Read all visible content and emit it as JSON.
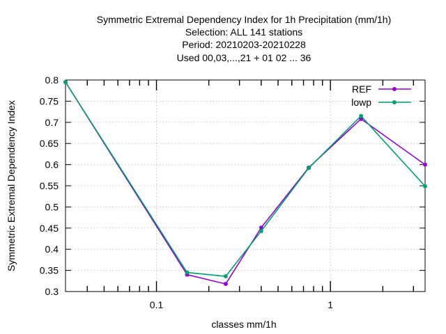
{
  "chart_data": {
    "type": "line",
    "title_lines": [
      "Symmetric Extremal Dependency Index  for 1h Precipitation (mm/1h)",
      "Selection: ALL     141 stations",
      "Period: 20210203-20210228",
      "Used  00,03,...,21  + 01 02 ... 36"
    ],
    "xlabel": "classes mm/1h",
    "ylabel": "Symmetric Extremal Dependency Index",
    "x_scale": "log",
    "xlim": [
      0.03,
      3.5
    ],
    "ylim": [
      0.3,
      0.8
    ],
    "x_major_ticks": [
      {
        "value": 0.1,
        "label": "0.1"
      },
      {
        "value": 1,
        "label": "1"
      }
    ],
    "y_ticks": [
      {
        "value": 0.3,
        "label": "0.3"
      },
      {
        "value": 0.35,
        "label": "0.35"
      },
      {
        "value": 0.4,
        "label": "0.4"
      },
      {
        "value": 0.45,
        "label": "0.45"
      },
      {
        "value": 0.5,
        "label": "0.5"
      },
      {
        "value": 0.55,
        "label": "0.55"
      },
      {
        "value": 0.6,
        "label": "0.6"
      },
      {
        "value": 0.65,
        "label": "0.65"
      },
      {
        "value": 0.7,
        "label": "0.7"
      },
      {
        "value": 0.75,
        "label": "0.75"
      },
      {
        "value": 0.8,
        "label": "0.8"
      }
    ],
    "x": [
      0.03,
      0.15,
      0.25,
      0.4,
      0.75,
      1.5,
      3.5
    ],
    "series": [
      {
        "name": "REF",
        "color": "#9400d3",
        "values": [
          0.795,
          0.34,
          0.318,
          0.451,
          0.593,
          0.708,
          0.6
        ]
      },
      {
        "name": "lowp",
        "color": "#009e73",
        "values": [
          0.795,
          0.345,
          0.336,
          0.443,
          0.592,
          0.715,
          0.549
        ]
      }
    ],
    "grid": true,
    "legend_position": "top-right"
  }
}
